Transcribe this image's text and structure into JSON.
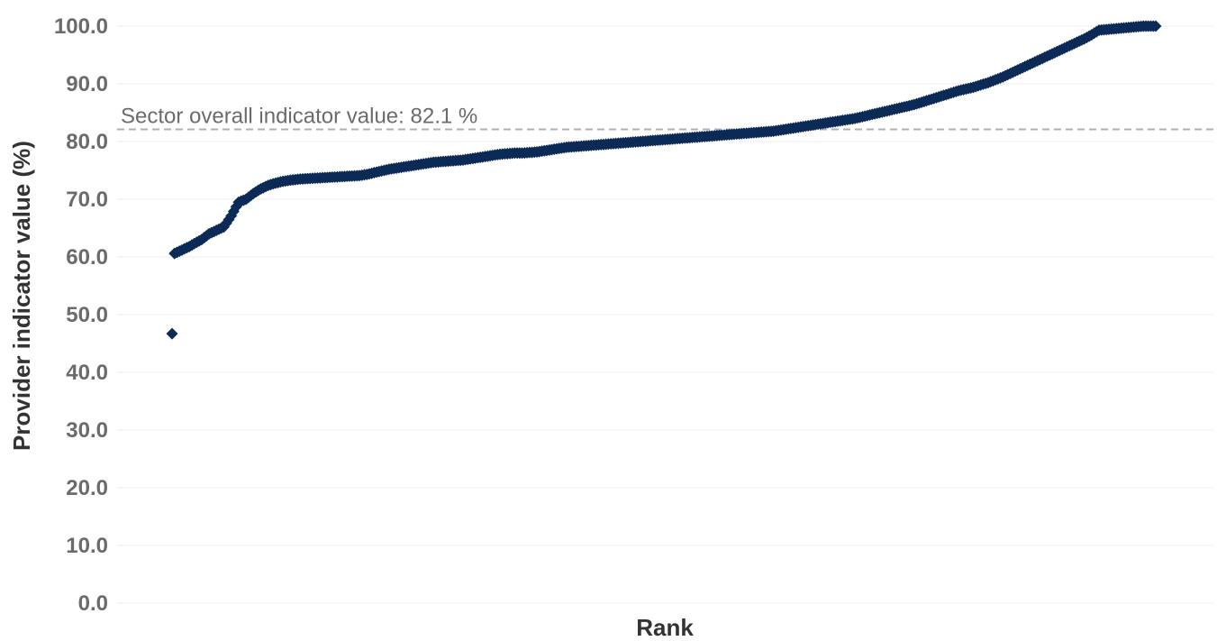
{
  "chart_data": {
    "type": "scatter",
    "xlabel": "Rank",
    "ylabel": "Provider indicator value (%)",
    "ylim": [
      0,
      100
    ],
    "yticks": [
      "0.0",
      "10.0",
      "20.0",
      "30.0",
      "40.0",
      "50.0",
      "60.0",
      "70.0",
      "80.0",
      "90.0",
      "100.0"
    ],
    "grid": true,
    "marker": "diamond",
    "colors": {
      "points": "#0b2a55",
      "reference_line": "#b0b0b0",
      "grid": "#eeeeee"
    },
    "reference_line": {
      "value": 82.1,
      "label": "Sector overall indicator value: 82.1 %"
    },
    "rank_count": 400,
    "values": [
      46.7,
      60.6,
      61.0,
      61.4,
      61.8,
      62.3,
      63.0,
      64.0,
      64.6,
      65.2,
      67.1,
      69.5,
      70.0,
      71.0,
      71.8,
      72.4,
      72.8,
      73.1,
      73.3,
      73.5,
      73.6,
      73.7,
      73.8,
      73.9,
      74.0,
      74.1,
      74.3,
      74.6,
      74.9,
      75.2,
      75.4,
      75.6,
      75.8,
      76.0,
      76.2,
      76.4,
      76.5,
      76.6,
      76.7,
      76.8,
      77.0,
      77.2,
      77.4,
      77.6,
      77.8,
      77.9,
      78.0,
      78.0,
      78.1,
      78.2,
      78.4,
      78.6,
      78.8,
      79.0,
      79.1,
      79.2,
      79.3,
      79.4,
      79.5,
      79.6,
      79.7,
      79.8,
      79.9,
      80.0,
      80.1,
      80.2,
      80.3,
      80.4,
      80.5,
      80.6,
      80.7,
      80.8,
      80.9,
      81.0,
      81.1,
      81.2,
      81.3,
      81.4,
      81.5,
      81.6,
      81.7,
      81.8,
      82.0,
      82.2,
      82.4,
      82.6,
      82.8,
      83.0,
      83.2,
      83.4,
      83.6,
      83.8,
      84.0,
      84.3,
      84.6,
      84.9,
      85.2,
      85.5,
      85.8,
      86.1,
      86.4,
      86.8,
      87.2,
      87.6,
      88.0,
      88.4,
      88.8,
      89.1,
      89.4,
      89.8,
      90.2,
      90.7,
      91.2,
      91.8,
      92.4,
      93.0,
      93.6,
      94.2,
      94.8,
      95.4,
      96.0,
      96.6,
      97.2,
      97.8,
      98.5,
      99.3,
      100.0,
      100.0
    ],
    "value_ranks": [
      1,
      2,
      4,
      6,
      8,
      10,
      13,
      16,
      19,
      22,
      25,
      28,
      31,
      34,
      37,
      40,
      43,
      46,
      49,
      53,
      57,
      61,
      65,
      69,
      73,
      77,
      80,
      83,
      86,
      89,
      92,
      95,
      98,
      101,
      104,
      107,
      110,
      113,
      116,
      119,
      122,
      125,
      128,
      131,
      134,
      137,
      140,
      143,
      146,
      149,
      152,
      155,
      158,
      161,
      164,
      167,
      170,
      173,
      176,
      179,
      182,
      185,
      188,
      191,
      194,
      197,
      200,
      203,
      206,
      209,
      212,
      215,
      218,
      221,
      224,
      227,
      230,
      233,
      236,
      239,
      242,
      245,
      248,
      251,
      254,
      257,
      260,
      263,
      266,
      269,
      272,
      275,
      278,
      281,
      284,
      287,
      290,
      293,
      296,
      299,
      302,
      305,
      308,
      311,
      314,
      317,
      320,
      323,
      326,
      329,
      332,
      335,
      338,
      341,
      344,
      347,
      350,
      353,
      356,
      359,
      362,
      365,
      368,
      371,
      374,
      377,
      395,
      400
    ]
  }
}
